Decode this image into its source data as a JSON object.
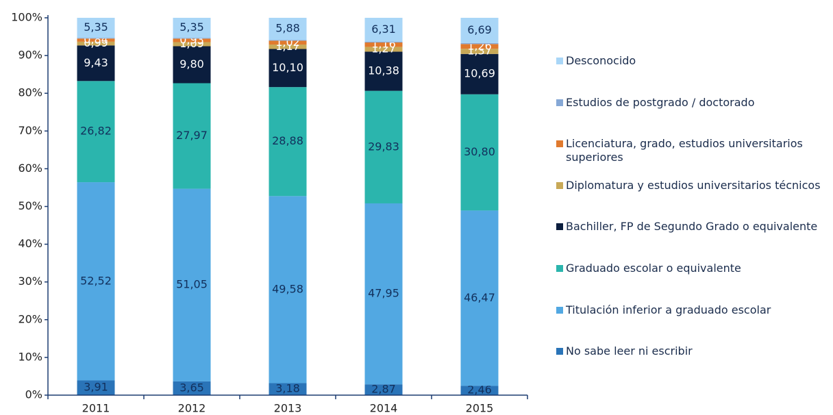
{
  "chart_data": {
    "type": "stacked_bar",
    "categories": [
      "2011",
      "2012",
      "2013",
      "2014",
      "2015"
    ],
    "ylim": [
      0,
      100
    ],
    "yticks": [
      {
        "value": 0,
        "label": "0%"
      },
      {
        "value": 10,
        "label": "10%"
      },
      {
        "value": 20,
        "label": "20%"
      },
      {
        "value": 30,
        "label": "30%"
      },
      {
        "value": 40,
        "label": "40%"
      },
      {
        "value": 50,
        "label": "50%"
      },
      {
        "value": 60,
        "label": "60%"
      },
      {
        "value": 70,
        "label": "70%"
      },
      {
        "value": 80,
        "label": "80%"
      },
      {
        "value": 90,
        "label": "90%"
      },
      {
        "value": 100,
        "label": "100%"
      }
    ],
    "legend": "right",
    "series": [
      {
        "name": "No sabe leer ni escribir",
        "color": "#2a74b8",
        "label_color": "#12305c",
        "values": [
          3.91,
          3.65,
          3.18,
          2.87,
          2.46
        ],
        "value_labels": [
          "3,91",
          "3,65",
          "3,18",
          "2,87",
          "2,46"
        ]
      },
      {
        "name": "Titulación inferior a graduado escolar",
        "color": "#52a8e2",
        "label_color": "#12305c",
        "values": [
          52.52,
          51.05,
          49.58,
          47.95,
          46.47
        ],
        "value_labels": [
          "52,52",
          "51,05",
          "49,58",
          "47,95",
          "46,47"
        ]
      },
      {
        "name": "Graduado escolar o equivalente",
        "color": "#2bb5ad",
        "label_color": "#12305c",
        "values": [
          26.82,
          27.97,
          28.88,
          29.83,
          30.8
        ],
        "value_labels": [
          "26,82",
          "27,97",
          "28,88",
          "29,83",
          "30,80"
        ]
      },
      {
        "name": "Bachiller, FP de Segundo Grado o equivalente",
        "color": "#0b1e3e",
        "label_color": "#ffffff",
        "values": [
          9.43,
          9.8,
          10.1,
          10.38,
          10.69
        ],
        "value_labels": [
          "9,43",
          "9,80",
          "10,10",
          "10,38",
          "10,69"
        ]
      },
      {
        "name": "Diplomatura y estudios universitarios técnicos",
        "color": "#c8a957",
        "label_color": "#ffffff",
        "values": [
          0.99,
          1.09,
          1.17,
          1.27,
          1.37
        ],
        "value_labels": [
          "0,99",
          "1,09",
          "1,17",
          "1,27",
          "1,37"
        ]
      },
      {
        "name": "Licenciatura, grado, estudios universitarios superiores",
        "color": "#e07a2e",
        "label_color": "#ffffff",
        "values": [
          0.84,
          0.93,
          1.02,
          1.16,
          1.26
        ],
        "value_labels": [
          "0,84",
          "0,93",
          "1,02",
          "1,16",
          "1,26"
        ]
      },
      {
        "name": "Estudios de postgrado / doctorado",
        "color": "#86a8d6",
        "values": [
          0.14,
          0.16,
          0.19,
          0.23,
          0.26
        ]
      },
      {
        "name": "Desconocido",
        "color": "#a9d6f7",
        "label_color": "#12305c",
        "values": [
          5.35,
          5.35,
          5.88,
          6.31,
          6.69
        ],
        "value_labels": [
          "5,35",
          "5,35",
          "5,88",
          "6,31",
          "6,69"
        ]
      }
    ]
  }
}
